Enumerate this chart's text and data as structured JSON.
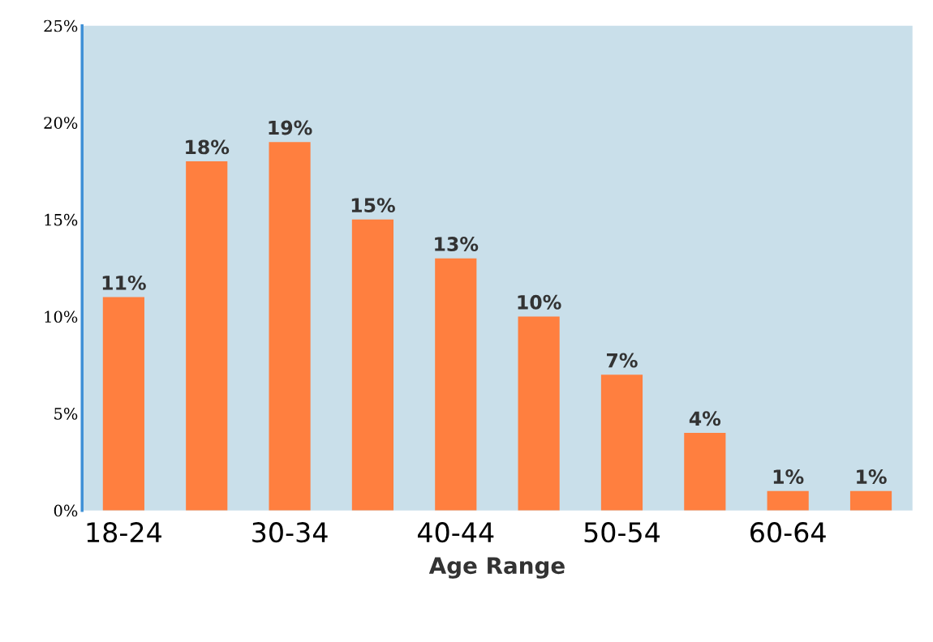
{
  "chart_data": {
    "type": "bar",
    "xlabel": "Age Range",
    "categories": [
      "18-24",
      null,
      "30-34",
      null,
      "40-44",
      null,
      "50-54",
      null,
      "60-64",
      null
    ],
    "values": [
      11,
      18,
      19,
      15,
      13,
      10,
      7,
      4,
      1,
      1
    ],
    "color": "#ff7f3f",
    "ylim": [
      0,
      25
    ],
    "yticks": [
      {
        "value": 0,
        "label": "0%"
      },
      {
        "value": 5,
        "label": "5%"
      },
      {
        "value": 10,
        "label": "10%"
      },
      {
        "value": 15,
        "label": "15%"
      },
      {
        "value": 20,
        "label": "20%"
      },
      {
        "value": 25,
        "label": "25%"
      }
    ],
    "value_labels": [
      "11%",
      "18%",
      "19%",
      "15%",
      "13%",
      "10%",
      "7%",
      "4%",
      "1%",
      "1%"
    ],
    "grid": false,
    "legend": false
  }
}
